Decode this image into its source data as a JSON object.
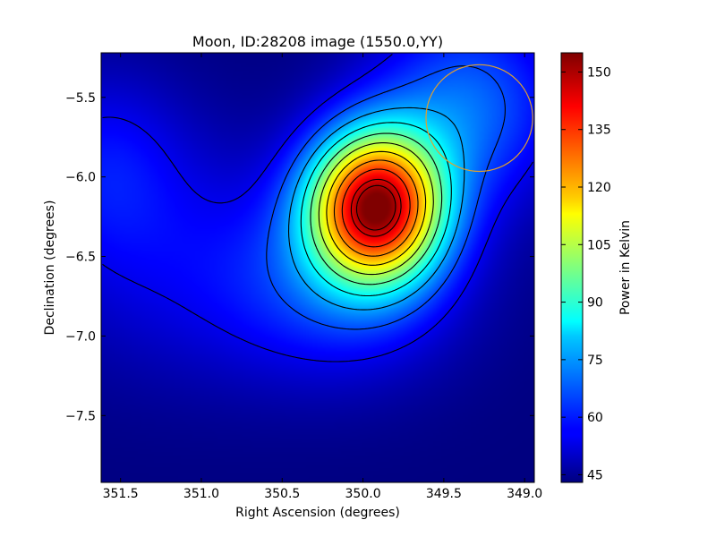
{
  "chart_data": {
    "type": "heatmap",
    "title": "Moon, ID:28208 image (1550.0,YY)",
    "xlabel": "Right Ascension (degrees)",
    "ylabel": "Declination (degrees)",
    "xlim": [
      351.62,
      348.94
    ],
    "ylim": [
      -7.92,
      -5.22
    ],
    "x_reversed": true,
    "x_ticks": [
      {
        "value": 351.5,
        "label": "351.5"
      },
      {
        "value": 351.0,
        "label": "351.0"
      },
      {
        "value": 350.5,
        "label": "350.5"
      },
      {
        "value": 350.0,
        "label": "350.0"
      },
      {
        "value": 349.5,
        "label": "349.5"
      },
      {
        "value": 349.0,
        "label": "349.0"
      }
    ],
    "y_ticks": [
      {
        "value": -5.5,
        "label": "−5.5"
      },
      {
        "value": -6.0,
        "label": "−6.0"
      },
      {
        "value": -6.5,
        "label": "−6.5"
      },
      {
        "value": -7.0,
        "label": "−7.0"
      },
      {
        "value": -7.5,
        "label": "−7.5"
      }
    ],
    "colorbar": {
      "label": "Power in Kelvin",
      "colormap": "jet",
      "range": [
        43,
        155
      ],
      "ticks": [
        {
          "value": 45,
          "label": "45"
        },
        {
          "value": 60,
          "label": "60"
        },
        {
          "value": 75,
          "label": "75"
        },
        {
          "value": 90,
          "label": "90"
        },
        {
          "value": 105,
          "label": "105"
        },
        {
          "value": 120,
          "label": "120"
        },
        {
          "value": 135,
          "label": "135"
        },
        {
          "value": 150,
          "label": "150"
        }
      ]
    },
    "peak": {
      "ra": 349.92,
      "dec": -6.18,
      "value": 153
    },
    "contour_levels": [
      55,
      65,
      75,
      85,
      95,
      105,
      115,
      125,
      135,
      145,
      150
    ],
    "annotations": [
      {
        "type": "circle",
        "ra": 349.28,
        "dec": -5.63,
        "radius_deg": 0.33,
        "color": "#e0a030"
      }
    ],
    "grid": false
  }
}
